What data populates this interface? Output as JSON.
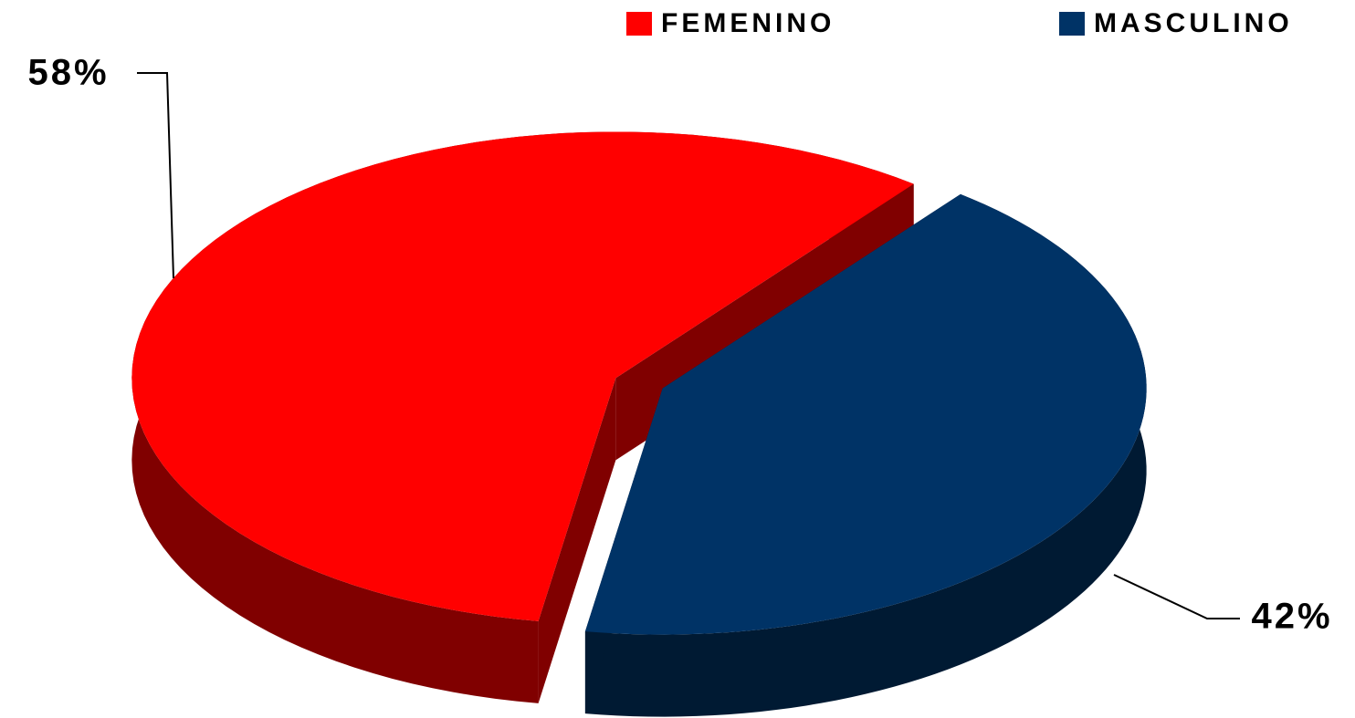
{
  "chart_data": {
    "type": "pie",
    "categories": [
      "FEMENINO",
      "MASCULINO"
    ],
    "values": [
      58,
      42
    ],
    "value_labels": [
      "58%",
      "42%"
    ],
    "colors": [
      "#ff0000",
      "#003366"
    ],
    "legend": "top"
  }
}
